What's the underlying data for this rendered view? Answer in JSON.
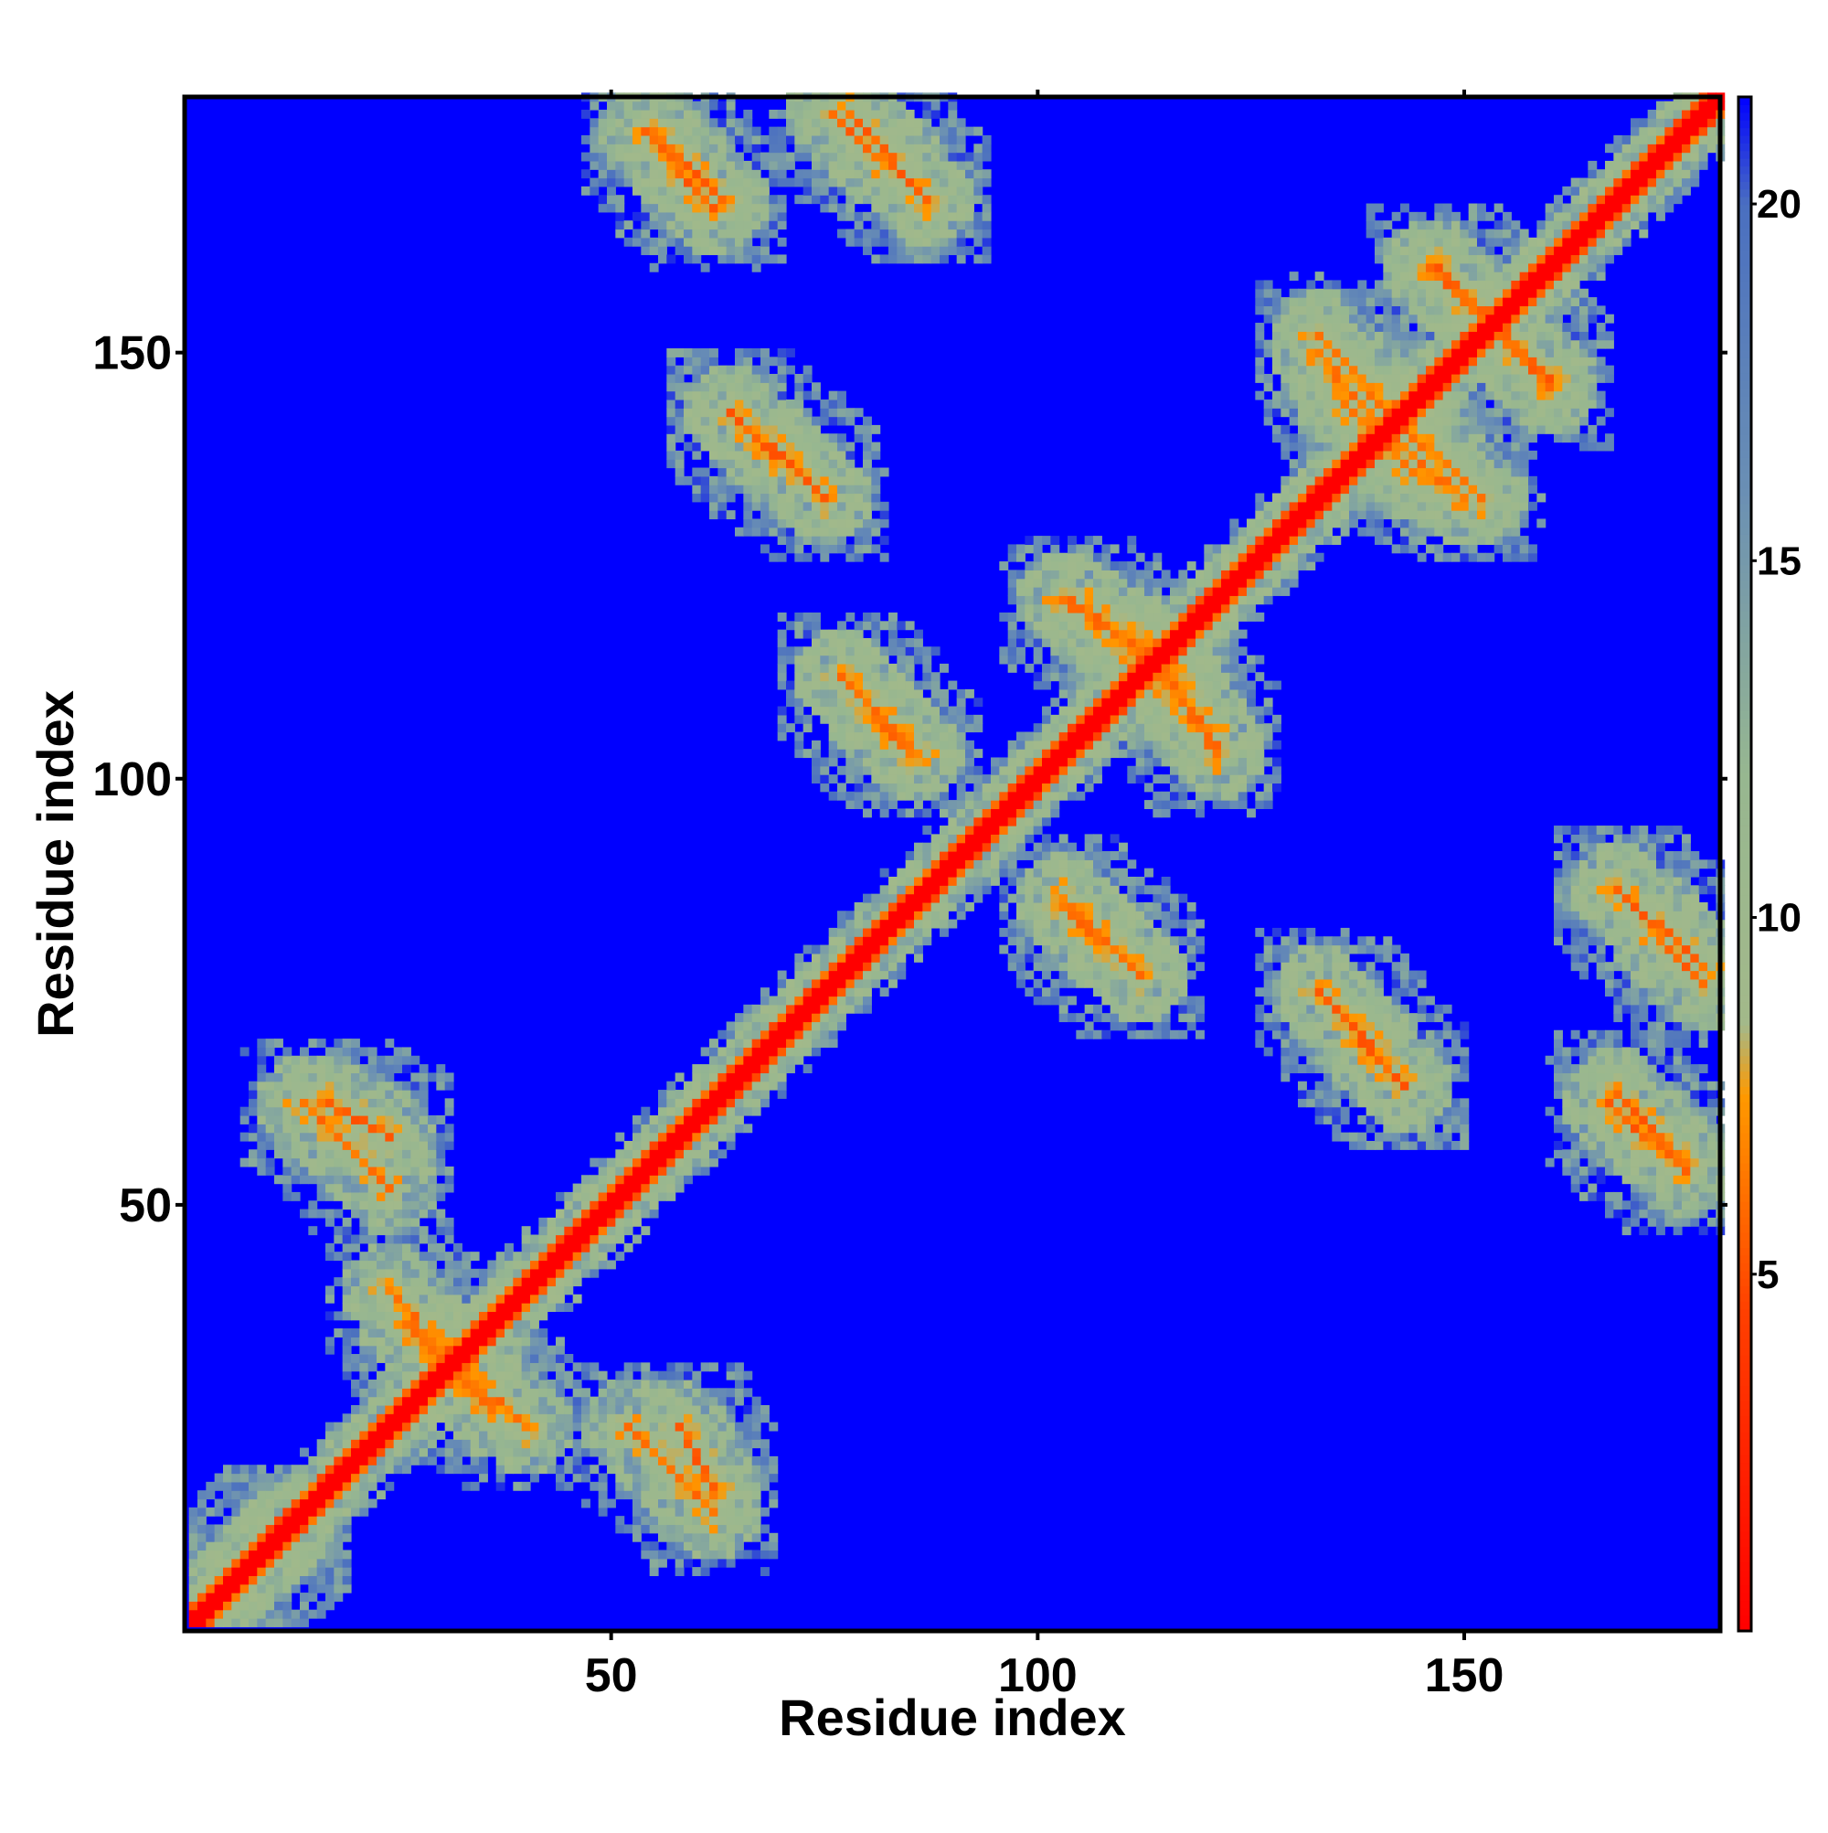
{
  "chart_data": {
    "type": "heatmap",
    "title": "",
    "xlabel": "Residue index",
    "ylabel": "Residue index",
    "n_residues": 180,
    "xlim": [
      1,
      180
    ],
    "ylim": [
      1,
      180
    ],
    "x_ticks": [
      "50",
      "100",
      "150"
    ],
    "x_tick_values": [
      50,
      100,
      150
    ],
    "y_ticks": [
      "50",
      "100",
      "150"
    ],
    "y_tick_values": [
      50,
      100,
      150
    ],
    "colorbar": {
      "ticks": [
        "5",
        "10",
        "15",
        "20"
      ],
      "tick_values": [
        5,
        10,
        15,
        20
      ],
      "range": [
        0,
        21.5
      ],
      "stops": [
        {
          "value": 0,
          "color": "#ff0000"
        },
        {
          "value": 4.5,
          "color": "#ff4000"
        },
        {
          "value": 7.5,
          "color": "#ff9900"
        },
        {
          "value": 8.5,
          "color": "#a3b98a"
        },
        {
          "value": 12,
          "color": "#97b790"
        },
        {
          "value": 16,
          "color": "#6a8fb4"
        },
        {
          "value": 20,
          "color": "#4a6fc0"
        },
        {
          "value": 21.5,
          "color": "#0000ff"
        }
      ]
    },
    "background_value": 21.5,
    "diagonal_value": 0,
    "contact_bands": [
      {
        "x": [
          3,
          12
        ],
        "y": [
          3,
          12
        ],
        "value": 4,
        "orientation": "parallel"
      },
      {
        "x": [
          16,
          24
        ],
        "y": [
          58,
          62
        ],
        "value": 5,
        "orientation": "antiparallel"
      },
      {
        "x": [
          24,
          36
        ],
        "y": [
          26,
          40
        ],
        "value": 5.5,
        "orientation": "antiparallel"
      },
      {
        "x": [
          52,
          62
        ],
        "y": [
          14,
          24
        ],
        "value": 5.5,
        "orientation": "antiparallel"
      },
      {
        "x": [
          54,
          62
        ],
        "y": [
          167,
          176
        ],
        "value": 5,
        "orientation": "antiparallel"
      },
      {
        "x": [
          64,
          75
        ],
        "y": [
          133,
          143
        ],
        "value": 5,
        "orientation": "antiparallel"
      },
      {
        "x": [
          78,
          87
        ],
        "y": [
          168,
          178
        ],
        "value": 5,
        "orientation": "antiparallel"
      },
      {
        "x": [
          77,
          86
        ],
        "y": [
          103,
          112
        ],
        "value": 5.5,
        "orientation": "antiparallel"
      },
      {
        "x": [
          103,
          112
        ],
        "y": [
          77,
          85
        ],
        "value": 5.5,
        "orientation": "antiparallel"
      },
      {
        "x": [
          104,
          116
        ],
        "y": [
          112,
          121
        ],
        "value": 5.5,
        "orientation": "antiparallel"
      },
      {
        "x": [
          112,
          121
        ],
        "y": [
          103,
          116
        ],
        "value": 5.5,
        "orientation": "antiparallel"
      },
      {
        "x": [
          134,
          143
        ],
        "y": [
          64,
          74
        ],
        "value": 5,
        "orientation": "antiparallel"
      },
      {
        "x": [
          133,
          144
        ],
        "y": [
          136,
          150
        ],
        "value": 5.5,
        "orientation": "antiparallel"
      },
      {
        "x": [
          140,
          152
        ],
        "y": [
          133,
          144
        ],
        "value": 5.5,
        "orientation": "antiparallel"
      },
      {
        "x": [
          146,
          160
        ],
        "y": [
          147,
          160
        ],
        "value": 5,
        "orientation": "antiparallel"
      },
      {
        "x": [
          168,
          178
        ],
        "y": [
          76,
          87
        ],
        "value": 5,
        "orientation": "antiparallel"
      },
      {
        "x": [
          168,
          176
        ],
        "y": [
          55,
          63
        ],
        "value": 5,
        "orientation": "antiparallel"
      }
    ]
  }
}
